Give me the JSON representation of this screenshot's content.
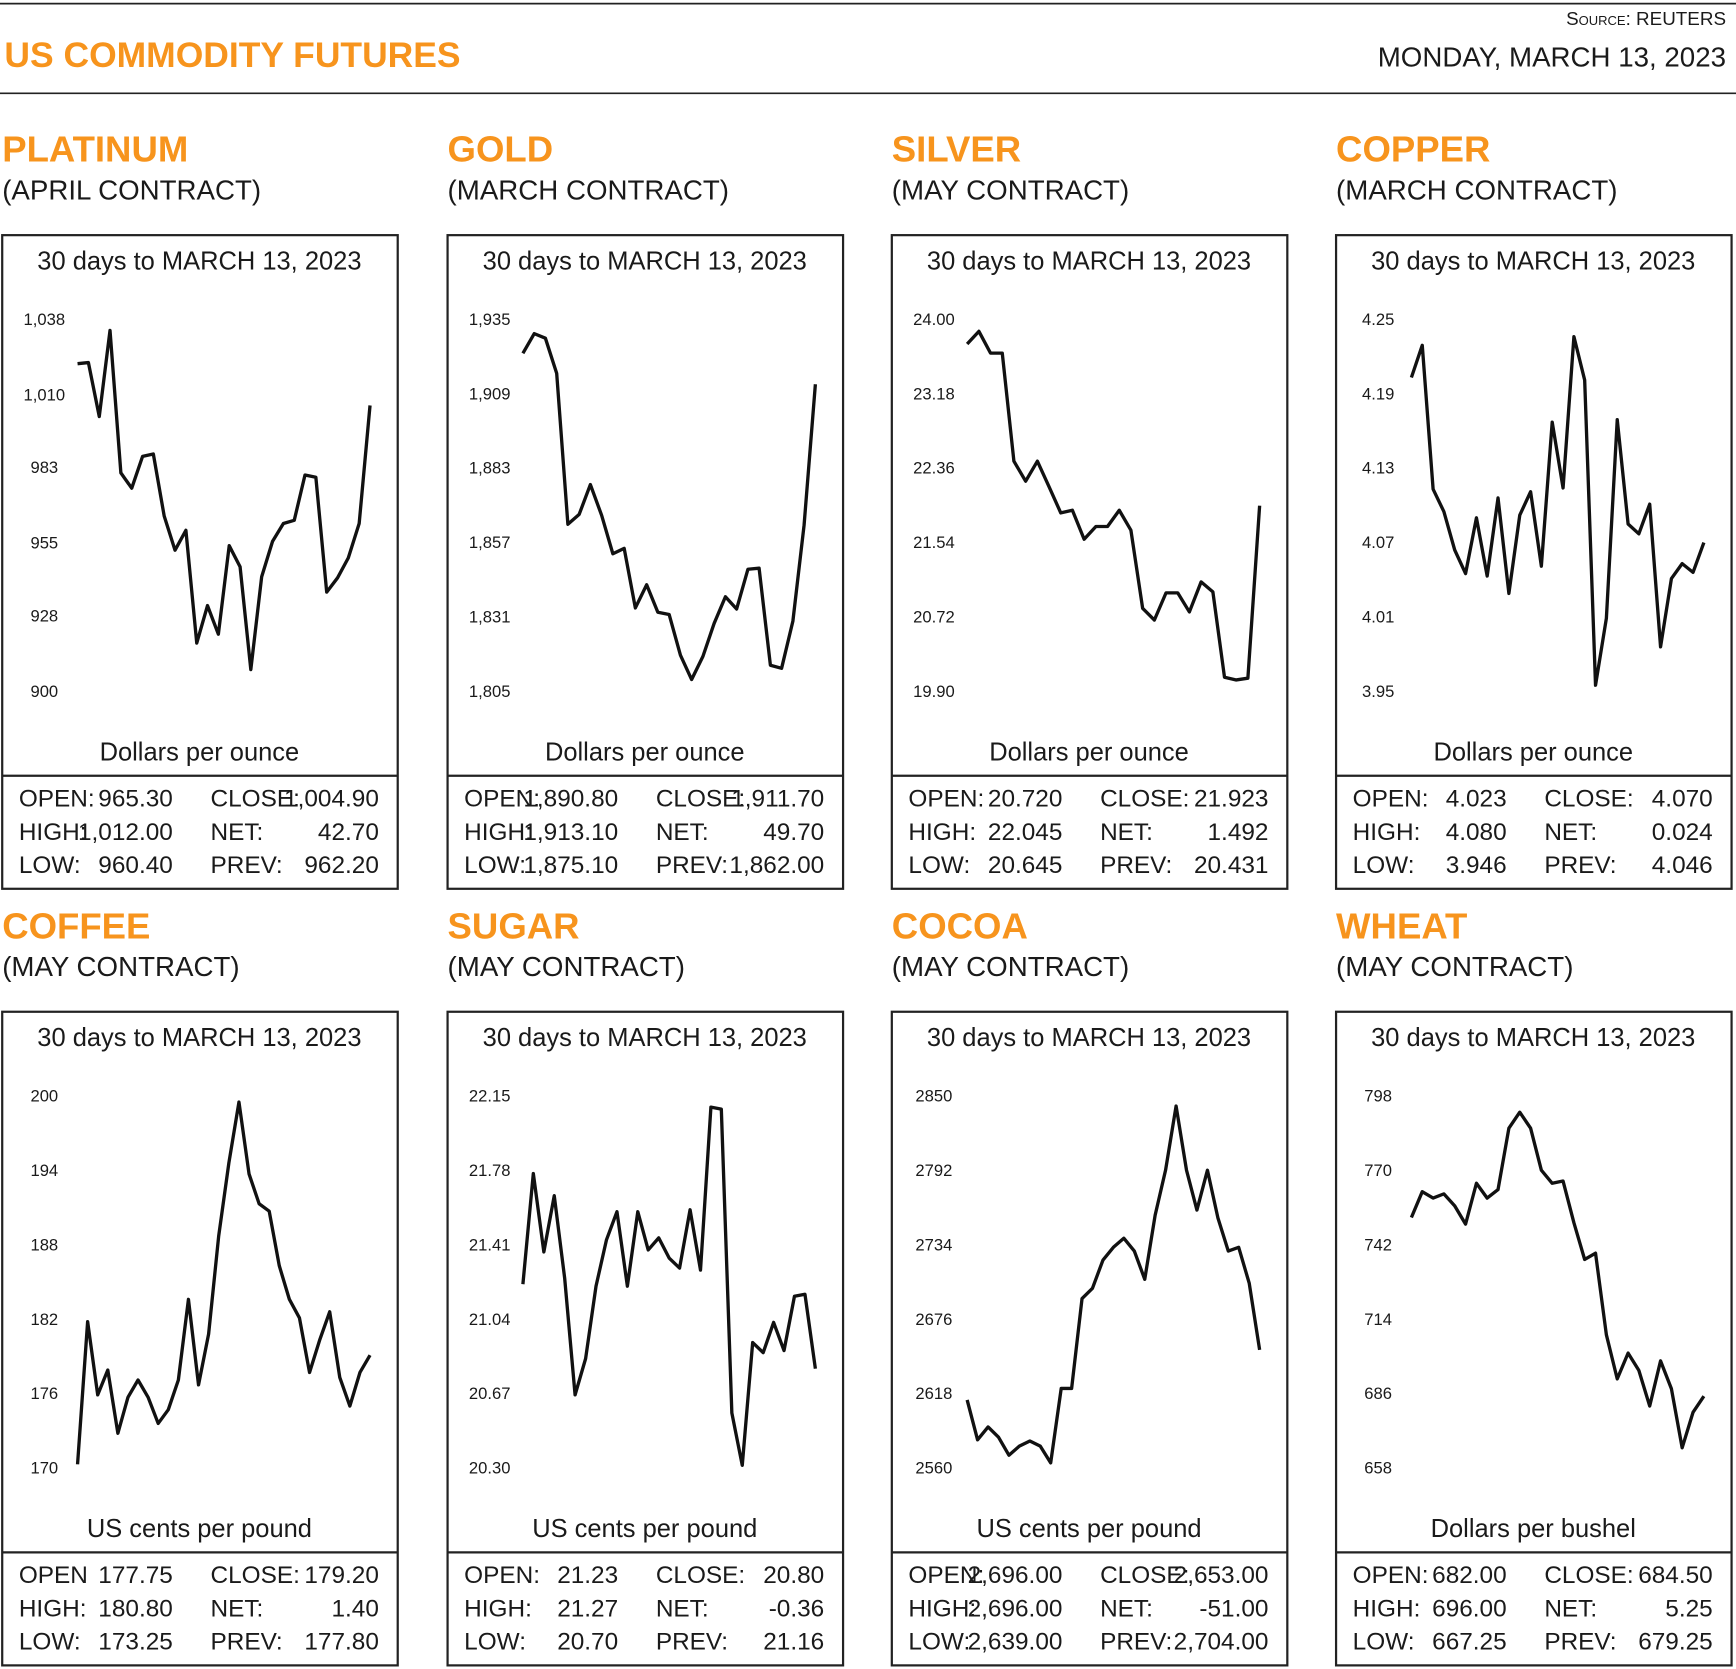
{
  "header": {
    "title": "US COMMODITY FUTURES",
    "source": "Source: REUTERS",
    "date": "MONDAY, MARCH 13, 2023"
  },
  "chart_data": [
    {
      "type": "line",
      "title": "PLATINUM",
      "subtitle": "(APRIL CONTRACT)",
      "caption": "30 days to MARCH 13, 2023",
      "ylabel": "Dollars per ounce",
      "color": "#111111",
      "ylim": [
        900,
        1038
      ],
      "yticks": [
        900,
        928,
        955,
        983,
        {
          "value": 1010,
          "label": "1,010"
        },
        {
          "value": 1038,
          "label": "1,038"
        }
      ],
      "values": [
        1022.0,
        1022.4,
        1002.4,
        1034.3,
        981.5,
        975.8,
        987.6,
        988.5,
        965.5,
        952.8,
        960.2,
        918.4,
        932.3,
        921.7,
        954.5,
        946.7,
        908.6,
        943.0,
        956.1,
        962.7,
        963.9,
        980.7,
        979.9,
        937.3,
        942.6,
        950.0,
        962.7,
        1006.5
      ],
      "stats": [
        {
          "label": "OPEN:",
          "value": "965.30"
        },
        {
          "label": "CLOSE:",
          "value": "1,004.90"
        },
        {
          "label": "HIGH:",
          "value": "1,012.00"
        },
        {
          "label": "NET:",
          "value": "42.70"
        },
        {
          "label": "LOW:",
          "value": "960.40"
        },
        {
          "label": "PREV:",
          "value": "962.20"
        }
      ]
    },
    {
      "type": "line",
      "title": "GOLD",
      "subtitle": "(MARCH CONTRACT)",
      "caption": "30 days to MARCH 13, 2023",
      "ylabel": "Dollars per ounce",
      "color": "#111111",
      "ylim": [
        1805,
        1935
      ],
      "yticks": [
        {
          "value": 1805,
          "label": "1,805"
        },
        {
          "value": 1831,
          "label": "1,831"
        },
        {
          "value": 1857,
          "label": "1,857"
        },
        {
          "value": 1883,
          "label": "1,883"
        },
        {
          "value": 1909,
          "label": "1,909"
        },
        {
          "value": 1935,
          "label": "1,935"
        }
      ],
      "values": [
        1923.5,
        1930.4,
        1928.8,
        1916.5,
        1863.8,
        1867.3,
        1877.7,
        1866.9,
        1853.5,
        1855.4,
        1834.6,
        1842.7,
        1833.1,
        1832.3,
        1818.1,
        1809.6,
        1817.7,
        1829.2,
        1838.5,
        1834.2,
        1848.1,
        1848.5,
        1814.6,
        1813.5,
        1830.0,
        1863.5,
        1912.7
      ],
      "stats": [
        {
          "label": "OPEN:",
          "value": "1,890.80"
        },
        {
          "label": "CLOSE:",
          "value": "1,911.70"
        },
        {
          "label": "HIGH:",
          "value": "1,913.10"
        },
        {
          "label": "NET:",
          "value": "49.70"
        },
        {
          "label": "LOW:",
          "value": "1,875.10"
        },
        {
          "label": "PREV:",
          "value": "1,862.00"
        }
      ]
    },
    {
      "type": "line",
      "title": "SILVER",
      "subtitle": "(MAY CONTRACT)",
      "caption": "30 days to MARCH 13, 2023",
      "ylabel": "Dollars per ounce",
      "color": "#111111",
      "ylim": [
        19.9,
        24
      ],
      "yticks": [
        {
          "value": 19.9,
          "label": "19.90"
        },
        20.72,
        21.54,
        22.36,
        23.18,
        {
          "value": 24,
          "label": "24.00"
        }
      ],
      "values": [
        23.74,
        23.88,
        23.64,
        23.64,
        22.45,
        22.23,
        22.45,
        22.17,
        21.88,
        21.91,
        21.59,
        21.73,
        21.73,
        21.91,
        21.69,
        20.83,
        20.7,
        21.0,
        21.0,
        20.79,
        21.12,
        21.01,
        20.07,
        20.04,
        20.06,
        21.96
      ],
      "stats": [
        {
          "label": "OPEN:",
          "value": "20.720"
        },
        {
          "label": "CLOSE:",
          "value": "21.923"
        },
        {
          "label": "HIGH:",
          "value": "22.045"
        },
        {
          "label": "NET:",
          "value": "1.492"
        },
        {
          "label": "LOW:",
          "value": "20.645"
        },
        {
          "label": "PREV:",
          "value": "20.431"
        }
      ]
    },
    {
      "type": "line",
      "title": "COPPER",
      "subtitle": "(MARCH CONTRACT)",
      "caption": "30 days to MARCH 13, 2023",
      "ylabel": "Dollars per ounce",
      "color": "#111111",
      "ylim": [
        3.95,
        4.25
      ],
      "yticks": [
        3.95,
        4.01,
        4.07,
        4.13,
        4.19,
        4.25
      ],
      "values": [
        4.204,
        4.23,
        4.114,
        4.096,
        4.065,
        4.046,
        4.091,
        4.044,
        4.107,
        4.03,
        4.093,
        4.112,
        4.052,
        4.168,
        4.115,
        4.237,
        4.202,
        3.956,
        4.01,
        4.17,
        4.086,
        4.078,
        4.102,
        3.987,
        4.042,
        4.054,
        4.047,
        4.071
      ],
      "stats": [
        {
          "label": "OPEN:",
          "value": "4.023"
        },
        {
          "label": "CLOSE:",
          "value": "4.070"
        },
        {
          "label": "HIGH:",
          "value": "4.080"
        },
        {
          "label": "NET:",
          "value": "0.024"
        },
        {
          "label": "LOW:",
          "value": "3.946"
        },
        {
          "label": "PREV:",
          "value": "4.046"
        }
      ]
    },
    {
      "type": "line",
      "title": "COFFEE",
      "subtitle": "(MAY CONTRACT)",
      "caption": "30 days to MARCH 13, 2023",
      "ylabel": "US cents per pound",
      "color": "#111111",
      "ylim": [
        170,
        200
      ],
      "yticks": [
        170,
        176,
        182,
        188,
        194,
        200
      ],
      "values": [
        170.4,
        181.9,
        176.0,
        178.0,
        172.9,
        175.8,
        177.2,
        175.8,
        173.7,
        174.8,
        177.2,
        183.7,
        176.8,
        180.9,
        188.8,
        194.7,
        199.6,
        193.8,
        191.4,
        190.8,
        186.4,
        183.7,
        182.2,
        177.8,
        180.4,
        182.7,
        177.4,
        175.1,
        177.8,
        179.2
      ],
      "stats": [
        {
          "label": "OPEN",
          "value": "177.75"
        },
        {
          "label": "CLOSE:",
          "value": "179.20"
        },
        {
          "label": "HIGH:",
          "value": "180.80"
        },
        {
          "label": "NET:",
          "value": "1.40"
        },
        {
          "label": "LOW:",
          "value": "173.25"
        },
        {
          "label": "PREV:",
          "value": "177.80"
        }
      ]
    },
    {
      "type": "line",
      "title": "SUGAR",
      "subtitle": "(MAY CONTRACT)",
      "caption": "30 days to MARCH 13, 2023",
      "ylabel": "US cents per pound",
      "color": "#111111",
      "ylim": [
        20.3,
        22.15
      ],
      "yticks": [
        {
          "value": 20.3,
          "label": "20.30"
        },
        20.67,
        21.04,
        21.41,
        21.78,
        22.15
      ],
      "values": [
        21.22,
        21.77,
        21.38,
        21.66,
        21.25,
        20.67,
        20.85,
        21.21,
        21.44,
        21.58,
        21.21,
        21.58,
        21.39,
        21.45,
        21.35,
        21.3,
        21.59,
        21.29,
        22.1,
        22.09,
        20.58,
        20.32,
        20.93,
        20.88,
        21.03,
        20.89,
        21.16,
        21.17,
        20.8
      ],
      "stats": [
        {
          "label": "OPEN:",
          "value": "21.23"
        },
        {
          "label": "CLOSE:",
          "value": "20.80"
        },
        {
          "label": "HIGH:",
          "value": "21.27"
        },
        {
          "label": "NET:",
          "value": "-0.36"
        },
        {
          "label": "LOW:",
          "value": "20.70"
        },
        {
          "label": "PREV:",
          "value": "21.16"
        }
      ]
    },
    {
      "type": "line",
      "title": "COCOA",
      "subtitle": "(MAY CONTRACT)",
      "caption": "30 days to MARCH 13, 2023",
      "ylabel": "US cents per pound",
      "color": "#111111",
      "ylim": [
        2560,
        2850
      ],
      "yticks": [
        2560,
        2618,
        2676,
        2734,
        2792,
        2850
      ],
      "values": [
        2614,
        2583,
        2593,
        2585,
        2571,
        2578,
        2582,
        2578,
        2565,
        2623,
        2623,
        2693,
        2701,
        2723,
        2733,
        2740,
        2730,
        2708,
        2758,
        2793,
        2843,
        2793,
        2762,
        2793,
        2756,
        2730,
        2733,
        2705,
        2653
      ],
      "stats": [
        {
          "label": "OPEN:",
          "value": "2,696.00"
        },
        {
          "label": "CLOSE:",
          "value": "2,653.00"
        },
        {
          "label": "HIGH:",
          "value": "2,696.00"
        },
        {
          "label": "NET:",
          "value": "-51.00"
        },
        {
          "label": "LOW:",
          "value": "2,639.00"
        },
        {
          "label": "PREV:",
          "value": "2,704.00"
        }
      ]
    },
    {
      "type": "line",
      "title": "WHEAT",
      "subtitle": "(MAY CONTRACT)",
      "caption": "30 days to MARCH 13, 2023",
      "ylabel": "Dollars per bushel",
      "color": "#111111",
      "ylim": [
        658,
        798
      ],
      "yticks": [
        658,
        686,
        714,
        742,
        770,
        798
      ],
      "values": [
        752.7,
        762.4,
        760.0,
        761.6,
        757.1,
        750.2,
        765.6,
        760.0,
        763.2,
        786.3,
        792.3,
        786.3,
        770.5,
        765.6,
        766.4,
        750.7,
        736.9,
        739.3,
        708.6,
        692.0,
        701.7,
        695.2,
        681.8,
        698.8,
        688.3,
        666.1,
        679.4,
        685.5
      ],
      "stats": [
        {
          "label": "OPEN:",
          "value": "682.00"
        },
        {
          "label": "CLOSE:",
          "value": "684.50"
        },
        {
          "label": "HIGH:",
          "value": "696.00"
        },
        {
          "label": "NET:",
          "value": "5.25"
        },
        {
          "label": "LOW:",
          "value": "667.25"
        },
        {
          "label": "PREV:",
          "value": "679.25"
        }
      ]
    }
  ]
}
